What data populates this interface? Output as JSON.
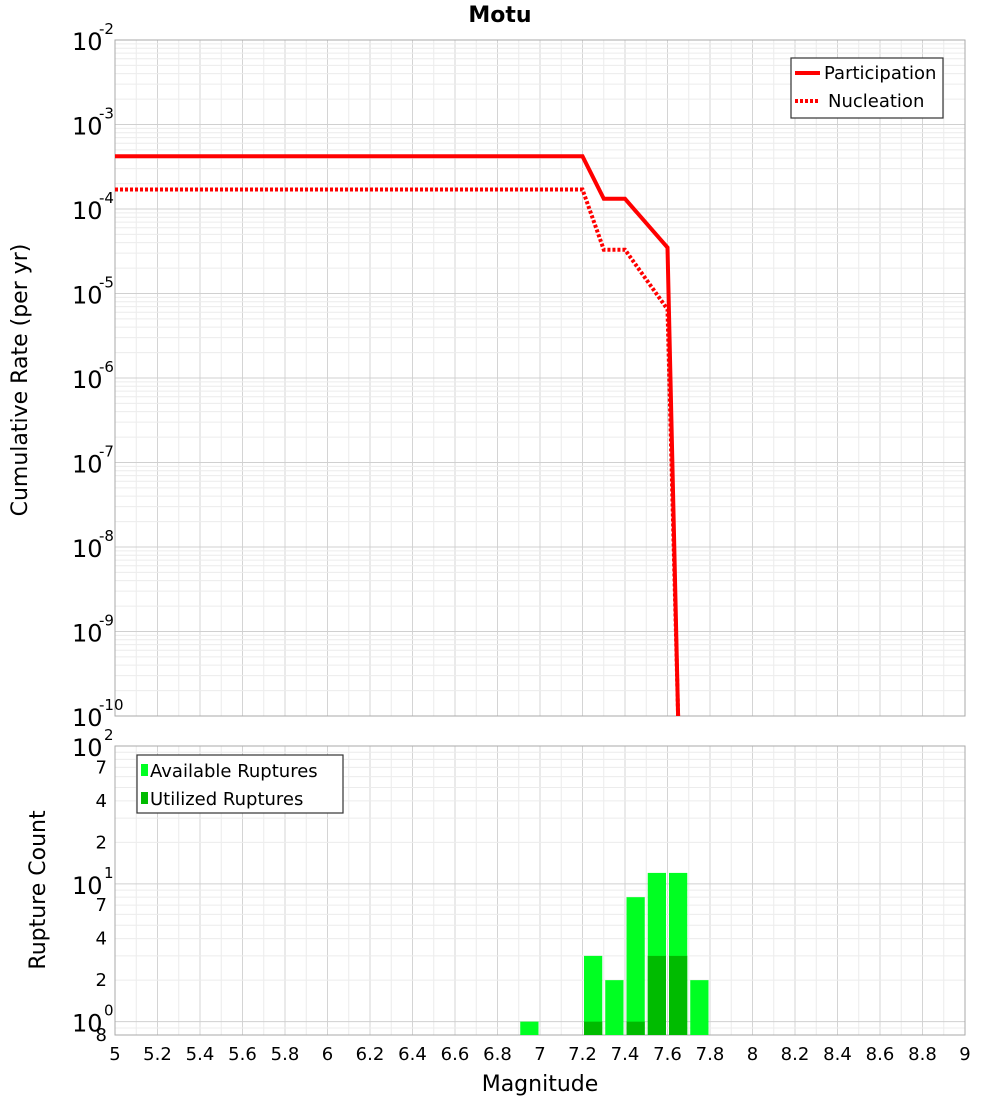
{
  "chart_data": [
    {
      "type": "line",
      "title": "Motu",
      "ylabel": "Cumulative Rate (per yr)",
      "xlabel": "Magnitude",
      "yscale": "log",
      "ylim": [
        1e-10,
        0.01
      ],
      "xlim": [
        5,
        9
      ],
      "grid": true,
      "legend_position": "top-right",
      "y_ticks": [
        {
          "base": "10",
          "exp": "-10",
          "value": 1e-10
        },
        {
          "base": "10",
          "exp": "-9",
          "value": 1e-09
        },
        {
          "base": "10",
          "exp": "-8",
          "value": 1e-08
        },
        {
          "base": "10",
          "exp": "-7",
          "value": 1e-07
        },
        {
          "base": "10",
          "exp": "-6",
          "value": 1e-06
        },
        {
          "base": "10",
          "exp": "-5",
          "value": 1e-05
        },
        {
          "base": "10",
          "exp": "-4",
          "value": 0.0001
        },
        {
          "base": "10",
          "exp": "-3",
          "value": 0.001
        },
        {
          "base": "10",
          "exp": "-2",
          "value": 0.01
        }
      ],
      "series": [
        {
          "name": "Participation",
          "color": "#ff0000",
          "style": "solid",
          "x": [
            5.0,
            7.2,
            7.3,
            7.4,
            7.6,
            7.65
          ],
          "y": [
            0.00042,
            0.00042,
            0.000132,
            0.000132,
            3.5e-05,
            1e-10
          ]
        },
        {
          "name": "Nucleation",
          "color": "#ff0000",
          "style": "dotted",
          "x": [
            5.0,
            7.2,
            7.3,
            7.4,
            7.6,
            7.65
          ],
          "y": [
            0.00017,
            0.00017,
            3.3e-05,
            3.3e-05,
            6.5e-06,
            1e-10
          ]
        }
      ]
    },
    {
      "type": "bar",
      "ylabel": "Rupture Count",
      "xlabel": "Magnitude",
      "yscale": "log",
      "ylim": [
        0.8,
        100
      ],
      "xlim": [
        5,
        9
      ],
      "grid": true,
      "legend_position": "top-left",
      "x_ticks": [
        "5",
        "5.2",
        "5.4",
        "5.6",
        "5.8",
        "6",
        "6.2",
        "6.4",
        "6.6",
        "6.8",
        "7",
        "7.2",
        "7.4",
        "7.6",
        "7.8",
        "8",
        "8.2",
        "8.4",
        "8.6",
        "8.8",
        "9"
      ],
      "y_major_ticks": [
        {
          "base": "10",
          "exp": "0",
          "value": 1
        },
        {
          "base": "10",
          "exp": "1",
          "value": 10
        },
        {
          "base": "10",
          "exp": "2",
          "value": 100
        }
      ],
      "y_minor_ticks": [
        {
          "label": "8",
          "value": 0.8
        },
        {
          "label": "2",
          "value": 2
        },
        {
          "label": "4",
          "value": 4
        },
        {
          "label": "7",
          "value": 7
        },
        {
          "label": "2",
          "value": 20
        },
        {
          "label": "4",
          "value": 40
        },
        {
          "label": "7",
          "value": 70
        }
      ],
      "bin_width": 0.1,
      "series": [
        {
          "name": "Available Ruptures",
          "color": "#00ff22",
          "x": [
            6.95,
            7.25,
            7.35,
            7.45,
            7.55,
            7.65,
            7.75
          ],
          "values": [
            1,
            3,
            2,
            8,
            12,
            12,
            2
          ]
        },
        {
          "name": "Utilized Ruptures",
          "color": "#00bb00",
          "x": [
            7.25,
            7.45,
            7.55,
            7.65
          ],
          "values": [
            1,
            1,
            3,
            3
          ]
        }
      ]
    }
  ]
}
